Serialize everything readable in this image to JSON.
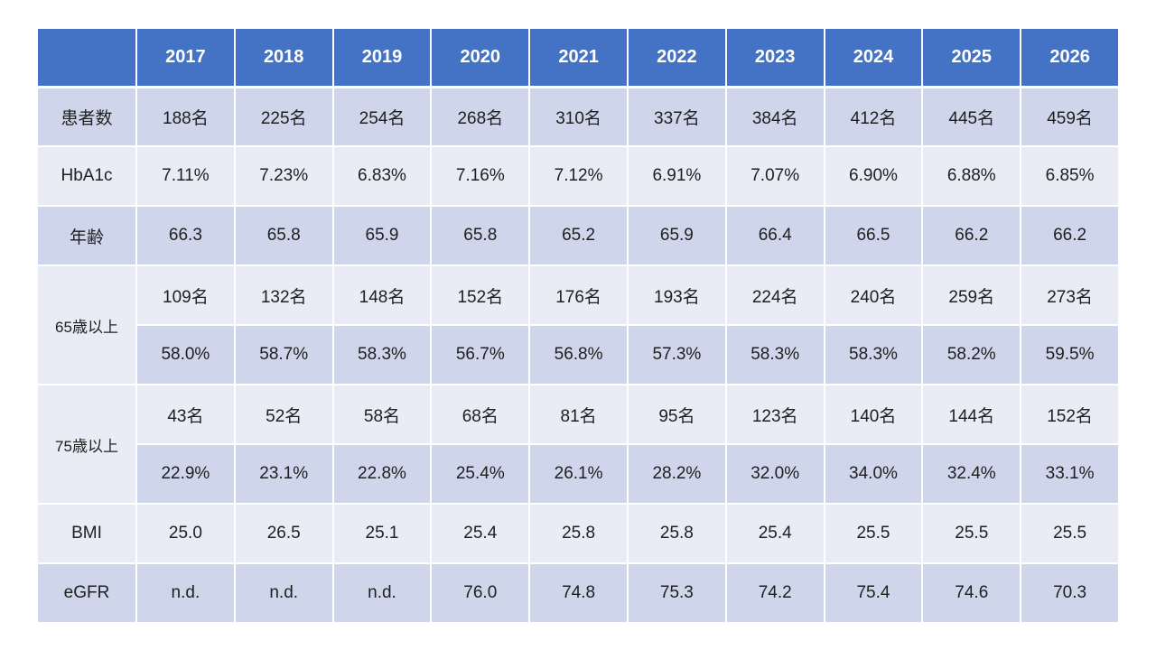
{
  "style": {
    "header_bg": "#4472C4",
    "header_text": "#FFFFFF",
    "band_dark": "#CFD5EA",
    "band_light": "#E9EBF5",
    "border": "#FFFFFF",
    "text": "#202020",
    "page_bg": "#FFFFFF"
  },
  "chart_data": {
    "type": "table",
    "title": "",
    "corner_label": "",
    "columns": [
      "2017",
      "2018",
      "2019",
      "2020",
      "2021",
      "2022",
      "2023",
      "2024",
      "2025",
      "2026"
    ],
    "row_groups": [
      {
        "label": "患者数",
        "rows": [
          [
            "188名",
            "225名",
            "254名",
            "268名",
            "310名",
            "337名",
            "384名",
            "412名",
            "445名",
            "459名"
          ]
        ]
      },
      {
        "label": "HbA1c",
        "rows": [
          [
            "7.11%",
            "7.23%",
            "6.83%",
            "7.16%",
            "7.12%",
            "6.91%",
            "7.07%",
            "6.90%",
            "6.88%",
            "6.85%"
          ]
        ]
      },
      {
        "label": "年齢",
        "rows": [
          [
            "66.3",
            "65.8",
            "65.9",
            "65.8",
            "65.2",
            "65.9",
            "66.4",
            "66.5",
            "66.2",
            "66.2"
          ]
        ]
      },
      {
        "label": "65歳以上",
        "rows": [
          [
            "109名",
            "132名",
            "148名",
            "152名",
            "176名",
            "193名",
            "224名",
            "240名",
            "259名",
            "273名"
          ],
          [
            "58.0%",
            "58.7%",
            "58.3%",
            "56.7%",
            "56.8%",
            "57.3%",
            "58.3%",
            "58.3%",
            "58.2%",
            "59.5%"
          ]
        ]
      },
      {
        "label": "75歳以上",
        "rows": [
          [
            "43名",
            "52名",
            "58名",
            "68名",
            "81名",
            "95名",
            "123名",
            "140名",
            "144名",
            "152名"
          ],
          [
            "22.9%",
            "23.1%",
            "22.8%",
            "25.4%",
            "26.1%",
            "28.2%",
            "32.0%",
            "34.0%",
            "32.4%",
            "33.1%"
          ]
        ]
      },
      {
        "label": "BMI",
        "rows": [
          [
            "25.0",
            "26.5",
            "25.1",
            "25.4",
            "25.8",
            "25.8",
            "25.4",
            "25.5",
            "25.5",
            "25.5"
          ]
        ]
      },
      {
        "label": "eGFR",
        "rows": [
          [
            "n.d.",
            "n.d.",
            "n.d.",
            "76.0",
            "74.8",
            "75.3",
            "74.2",
            "75.4",
            "74.6",
            "70.3"
          ]
        ]
      }
    ]
  }
}
